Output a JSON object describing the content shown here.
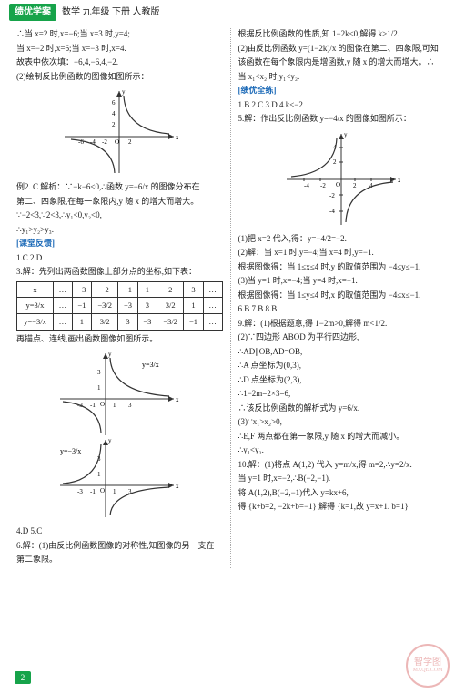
{
  "header": {
    "banner": "绩优学案",
    "subject": "数学 九年级 下册 人教版"
  },
  "left": {
    "p1": "∴当 x=2 时,x=−6;当 x=3 时,y=4;",
    "p2": "当 x=−2 时,x=6;当 x=−3 时,x=4.",
    "p3": "故表中依次填：−6,4,−6,4,−2.",
    "p4": "(2)绘制反比例函数的图像如图所示：",
    "p5": "例2. C   解析：∵−k−6<0,∴函数 y=−6/x 的图像分布在",
    "p6": "第二、四象限,在每一象限内,y 随 x 的增大而增大。",
    "p7": "∵−2<3,∵2<3,∴y₁<0,y₂<0,",
    "p8": "∴y₁>y₂>y₃.",
    "sec1": "[课堂反馈]",
    "p9": "1.C  2.D",
    "p10": "3.解：先列出两函数图像上部分点的坐标,如下表：",
    "table": {
      "row1": [
        "x",
        "…",
        "−3",
        "−2",
        "−1",
        "1",
        "2",
        "3",
        "…"
      ],
      "row2": [
        "y=3/x",
        "…",
        "−1",
        "−3/2",
        "−3",
        "3",
        "3/2",
        "1",
        "…"
      ],
      "row3": [
        "y=−3/x",
        "…",
        "1",
        "3/2",
        "3",
        "−3",
        "−3/2",
        "−1",
        "…"
      ]
    },
    "p11": "再描点、连线,画出函数图像如图所示。",
    "p12": "4.D  5.C",
    "p13": "6.解：(1)由反比例函数图像的对称性,知图像的另一支在",
    "p14": "第二象限。"
  },
  "right": {
    "p1": "根据反比例函数的性质,知 1−2k<0,解得 k>1/2.",
    "p2": "(2)由反比例函数 y=(1−2k)/x 的图像在第二、四象限,可知",
    "p3": "该函数在每个象限内是增函数,y 随 x 的增大而增大。∴",
    "p4": "当 x₁<x₂ 时,y₁<y₂.",
    "sec1": "[绩优全练]",
    "p5": "1.B  2.C  3.D  4.k<−2",
    "p6": "5.解：作出反比例函数 y=−4/x 的图像如图所示：",
    "p7": "(1)把 x=2 代入,得：y=−4/2=−2.",
    "p8": "(2)解：当 x=1 时,y=−4;当 x=4 时,y=−1.",
    "p9": "根据图像得：当 1≤x≤4 时,y 的取值范围为 −4≤y≤−1.",
    "p10": "(3)当 y=1 时,x=−4;当 y=4 时,x=−1.",
    "p11": "根据图像得：当 1≤y≤4 时,x 的取值范围为 −4≤x≤−1.",
    "p12": "6.B  7.B  8.B",
    "p13": "9.解：(1)根据题意,得 1−2m>0,解得 m<1/2.",
    "p14": "(2)∵四边形 ABOD 为平行四边形,",
    "p15": "∴AD∥OB,AD=OB,",
    "p16": "∴A 点坐标为(0,3),",
    "p17": "∴D 点坐标为(2,3),",
    "p18": "∴1−2m=2×3=6,",
    "p19": "∴该反比例函数的解析式为 y=6/x.",
    "p20": "(3)∵x₁>x₂>0,",
    "p21": "∴E,F 两点都在第一象限,y 随 x 的增大而减小。",
    "p22": "∴y₁<y₂.",
    "p23": "10.解：(1)将点 A(1,2) 代入 y=m/x,得 m=2,∴y=2/x.",
    "p24": "当 y=1 时,x=−2,∴B(−2,−1).",
    "p25": "将 A(1,2),B(−2,−1)代入 y=kx+6,",
    "p26": "得 {k+b=2, −2k+b=−1}  解得 {k=1,故 y=x+1. b=1}"
  },
  "pagenum": "2",
  "watermark": {
    "main": "智学图",
    "sub": "MXQE.COM"
  },
  "graph1": {
    "xlim": [
      -8,
      8
    ],
    "ylim": [
      -6,
      10
    ],
    "xticks": [
      -6,
      -4,
      -2,
      2
    ],
    "yticks": [
      2,
      4,
      6
    ],
    "curves": "hyperbola-q1q3",
    "axis_color": "#333",
    "curve_color": "#333"
  },
  "graph2": {
    "xlim": [
      -5,
      5
    ],
    "ylim": [
      -4,
      5
    ],
    "xticks": [
      -3,
      -1,
      1,
      3
    ],
    "yticks": [
      1,
      3
    ],
    "label1": "y=3/x",
    "label2": "y=−3/x",
    "axis_color": "#333"
  },
  "graph3": {
    "xlim": [
      -6,
      6
    ],
    "ylim": [
      -6,
      6
    ],
    "xticks": [
      -4,
      -2,
      2,
      4
    ],
    "yticks": [
      -4,
      -2,
      2,
      4
    ],
    "curves": "hyperbola-q2q4",
    "axis_color": "#333",
    "curve_color": "#333"
  }
}
